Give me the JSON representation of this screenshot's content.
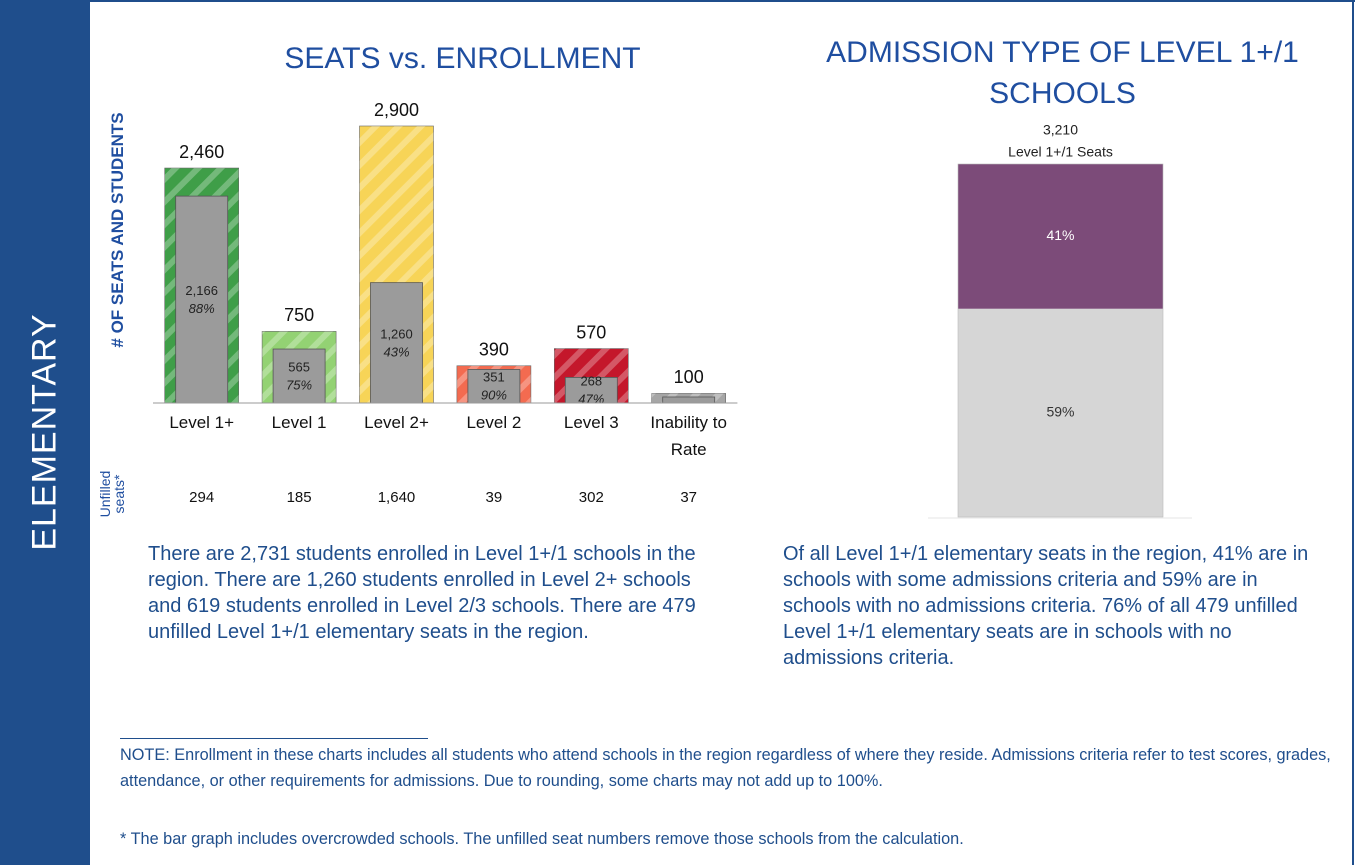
{
  "sidebar": "ELEMENTARY",
  "chart_data": [
    {
      "type": "bar",
      "title": "SEATS vs. ENROLLMENT",
      "y_label": "# OF SEATS AND STUDENTS",
      "categories": [
        "Level 1+",
        "Level 1",
        "Level 2+",
        "Level 2",
        "Level 3",
        "Inability to Rate"
      ],
      "ylim": [
        0,
        2900
      ],
      "series": [
        {
          "colors": [
            "#3f9e48",
            "#93d273",
            "#f7d457",
            "#f36b50",
            "#c4172b",
            "#a6a6a6"
          ],
          "values": [
            2460,
            750,
            2900,
            390,
            570,
            100
          ],
          "value_labels": [
            "2,460",
            "750",
            "2,900",
            "390",
            "570",
            "100"
          ]
        },
        {
          "color": "#9b9b9b",
          "values": [
            2166,
            565,
            1260,
            351,
            268,
            63
          ],
          "value_labels": [
            "2,166",
            "565",
            "1,260",
            "351",
            "268",
            null
          ],
          "percent_labels": [
            "88%",
            "75%",
            "43%",
            "90%",
            "47%",
            null
          ]
        }
      ],
      "unfilled": {
        "label": "Unfilled seats*",
        "values": [
          294,
          185,
          1640,
          39,
          302,
          37
        ],
        "value_labels": [
          "294",
          "185",
          "1,640",
          "39",
          "302",
          "37"
        ]
      }
    },
    {
      "type": "stacked_bar",
      "title": "ADMISSION TYPE OF LEVEL 1+/1 SCHOOLS",
      "total": 3210,
      "total_label": "3,210",
      "total_caption": "Level 1+/1 Seats",
      "ylim": [
        0,
        100
      ],
      "series": [
        {
          "color": "#d6d6d6",
          "values": [
            59
          ],
          "value_labels": [
            "59%"
          ]
        },
        {
          "color": "#7c4b79",
          "values": [
            41
          ],
          "value_labels": [
            "41%"
          ]
        }
      ]
    }
  ],
  "text_left": "There are 2,731 students enrolled in Level 1+/1 schools in the region. There are 1,260 students enrolled in Level 2+ schools and 619 students enrolled in Level 2/3 schools. There are 479 unfilled Level 1+/1 elementary seats in the region.",
  "text_right": "Of all Level 1+/1 elementary seats in the region, 41% are in schools with some admissions criteria and 59% are in schools with no admissions criteria. 76% of all 479 unfilled Level 1+/1 elementary seats are in schools with no admissions criteria.",
  "note": "NOTE: Enrollment in these charts includes all students who attend schools in the region regardless of where they reside. Admissions criteria refer to test scores, grades, attendance, or other requirements for admissions. Due to rounding, some charts may not add up to 100%.",
  "footnote": "* The bar graph includes overcrowded schools. The unfilled seat numbers remove those schools from the calculation."
}
